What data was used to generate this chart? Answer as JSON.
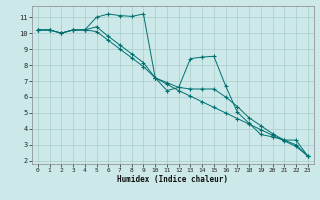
{
  "title": "",
  "xlabel": "Humidex (Indice chaleur)",
  "bg_color": "#cce8e8",
  "grid_color": "#aacccc",
  "line_color": "#007070",
  "xlim": [
    -0.5,
    23.5
  ],
  "ylim": [
    1.8,
    11.7
  ],
  "xticks": [
    0,
    1,
    2,
    3,
    4,
    5,
    6,
    7,
    8,
    9,
    10,
    11,
    12,
    13,
    14,
    15,
    16,
    17,
    18,
    19,
    20,
    21,
    22,
    23
  ],
  "yticks": [
    2,
    3,
    4,
    5,
    6,
    7,
    8,
    9,
    10,
    11
  ],
  "series1_x": [
    0,
    1,
    2,
    3,
    4,
    5,
    6,
    7,
    8,
    9,
    10,
    11,
    12,
    13,
    14,
    15,
    16,
    17,
    18,
    19,
    20,
    21,
    22,
    23
  ],
  "series1_y": [
    10.2,
    10.2,
    10.0,
    10.2,
    10.2,
    11.0,
    11.2,
    11.1,
    11.05,
    11.2,
    7.2,
    6.4,
    6.6,
    8.4,
    8.5,
    8.55,
    6.7,
    5.05,
    4.35,
    3.65,
    3.5,
    3.3,
    3.3,
    2.3
  ],
  "series2_x": [
    0,
    1,
    2,
    3,
    4,
    5,
    6,
    7,
    8,
    9,
    10,
    11,
    12,
    13,
    14,
    15,
    16,
    17,
    18,
    19,
    20,
    21,
    22,
    23
  ],
  "series2_y": [
    10.2,
    10.2,
    10.0,
    10.2,
    10.2,
    10.4,
    9.8,
    9.25,
    8.7,
    8.15,
    7.2,
    6.9,
    6.6,
    6.5,
    6.5,
    6.5,
    6.0,
    5.4,
    4.7,
    4.2,
    3.7,
    3.3,
    3.0,
    2.3
  ],
  "series3_x": [
    0,
    1,
    2,
    3,
    4,
    5,
    6,
    7,
    8,
    9,
    10,
    11,
    12,
    13,
    14,
    15,
    16,
    17,
    18,
    19,
    20,
    21,
    22,
    23
  ],
  "series3_y": [
    10.2,
    10.2,
    10.0,
    10.2,
    10.2,
    10.1,
    9.55,
    9.0,
    8.45,
    7.9,
    7.2,
    6.8,
    6.4,
    6.05,
    5.7,
    5.35,
    5.0,
    4.65,
    4.3,
    3.95,
    3.6,
    3.25,
    2.9,
    2.3
  ]
}
